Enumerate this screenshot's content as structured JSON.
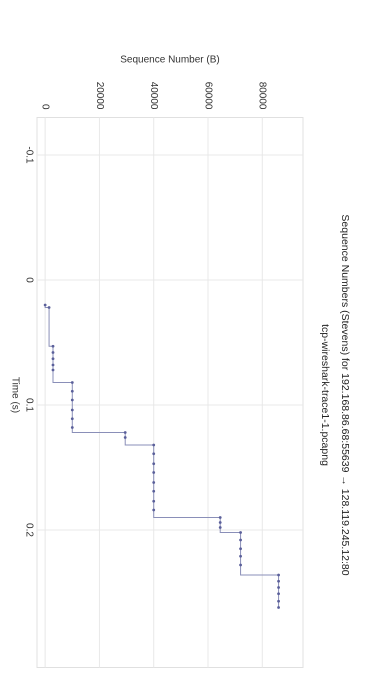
{
  "chart_data": {
    "type": "line",
    "step": "post",
    "title": "Sequence Numbers (Stevens) for 192.168.86.68:55639 → 128.119.245.12:80",
    "subtitle": "tcp-wireshark-trace1-1.pcapng",
    "x_label": "Time (s)",
    "y_label": "Sequence Number (B)",
    "x": [
      0.02,
      0.022,
      0.053,
      0.058,
      0.063,
      0.068,
      0.072,
      0.082,
      0.089,
      0.096,
      0.104,
      0.111,
      0.118,
      0.122,
      0.126,
      0.132,
      0.139,
      0.147,
      0.154,
      0.162,
      0.169,
      0.177,
      0.184,
      0.19,
      0.194,
      0.198,
      0.202,
      0.208,
      0.215,
      0.221,
      0.228,
      0.236,
      0.241,
      0.246,
      0.251,
      0.257,
      0.262
    ],
    "series": [
      {
        "name": "Sequence Number",
        "color": "#5a5f9a",
        "values": [
          0,
          1448,
          2896,
          2896,
          2896,
          2896,
          2896,
          10000,
          10000,
          10000,
          10000,
          10000,
          10000,
          29500,
          29500,
          40000,
          40000,
          40000,
          40000,
          40000,
          40000,
          40000,
          40000,
          64500,
          64500,
          64500,
          72000,
          72000,
          72000,
          72000,
          72000,
          86000,
          86000,
          86000,
          86000,
          86000,
          86000
        ]
      }
    ],
    "xlim": [
      -0.13,
      0.31
    ],
    "ylim": [
      -3000,
      95000
    ],
    "xticks": [
      -0.1,
      0,
      0.1,
      0.2
    ],
    "yticks": [
      0,
      20000,
      40000,
      60000,
      80000
    ],
    "grid": true
  }
}
